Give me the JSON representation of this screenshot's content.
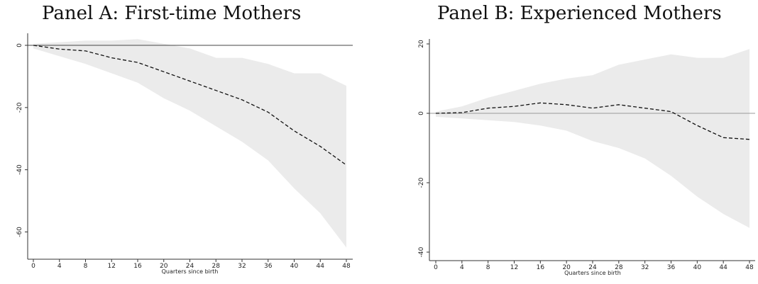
{
  "chart_data": [
    {
      "type": "line",
      "title": "Panel A: First-time Mothers",
      "xlabel": "Quarters since birth",
      "ylabel": "",
      "xlim": [
        0,
        48
      ],
      "ylim": [
        -66,
        4
      ],
      "xticks": [
        "0",
        "4",
        "8",
        "12",
        "16",
        "20",
        "24",
        "28",
        "32",
        "36",
        "40",
        "44",
        "48"
      ],
      "yticks": [
        "0",
        "-20",
        "-40",
        "-60"
      ],
      "reference_line": 0,
      "x": [
        0,
        4,
        8,
        12,
        16,
        20,
        24,
        28,
        32,
        36,
        40,
        44,
        48
      ],
      "series": [
        {
          "style": "dashed",
          "values": [
            0,
            -1.2,
            -1.8,
            -4.0,
            -5.5,
            -8.5,
            -11.5,
            -14.5,
            -17.5,
            -21.5,
            -27.5,
            -32.5,
            -38.5
          ]
        }
      ],
      "band": {
        "upper": [
          0.5,
          1.0,
          1.5,
          1.5,
          2.0,
          0.5,
          -1.0,
          -4.0,
          -4.0,
          -6.0,
          -9.0,
          -9.0,
          -13.0
        ],
        "lower": [
          -1.0,
          -3.5,
          -6.0,
          -9.0,
          -12.0,
          -17.0,
          -21.0,
          -26.0,
          -31.0,
          -37.0,
          -46.0,
          -54.0,
          -65.0
        ]
      }
    },
    {
      "type": "line",
      "title": "Panel B: Experienced Mothers",
      "xlabel": "Quarters since birth",
      "ylabel": "",
      "xlim": [
        0,
        48
      ],
      "ylim": [
        -41,
        22
      ],
      "xticks": [
        "0",
        "4",
        "8",
        "12",
        "16",
        "20",
        "24",
        "28",
        "32",
        "36",
        "40",
        "44",
        "48"
      ],
      "yticks": [
        "20",
        "0",
        "-20",
        "-40"
      ],
      "reference_line": 0,
      "x": [
        0,
        4,
        8,
        12,
        16,
        20,
        24,
        28,
        32,
        36,
        40,
        44,
        48
      ],
      "series": [
        {
          "style": "dashed",
          "values": [
            0,
            0.2,
            1.5,
            2.0,
            3.0,
            2.5,
            1.5,
            2.5,
            1.5,
            0.5,
            -3.5,
            -7.0,
            -7.5
          ]
        }
      ],
      "band": {
        "upper": [
          0.5,
          2.0,
          4.5,
          6.5,
          8.5,
          10.0,
          11.0,
          14.0,
          15.5,
          17.0,
          16.0,
          16.0,
          18.5
        ],
        "lower": [
          -1.0,
          -1.5,
          -2.0,
          -2.5,
          -3.5,
          -5.0,
          -8.0,
          -10.0,
          -13.0,
          -18.0,
          -24.0,
          -29.0,
          -33.0
        ]
      }
    }
  ]
}
